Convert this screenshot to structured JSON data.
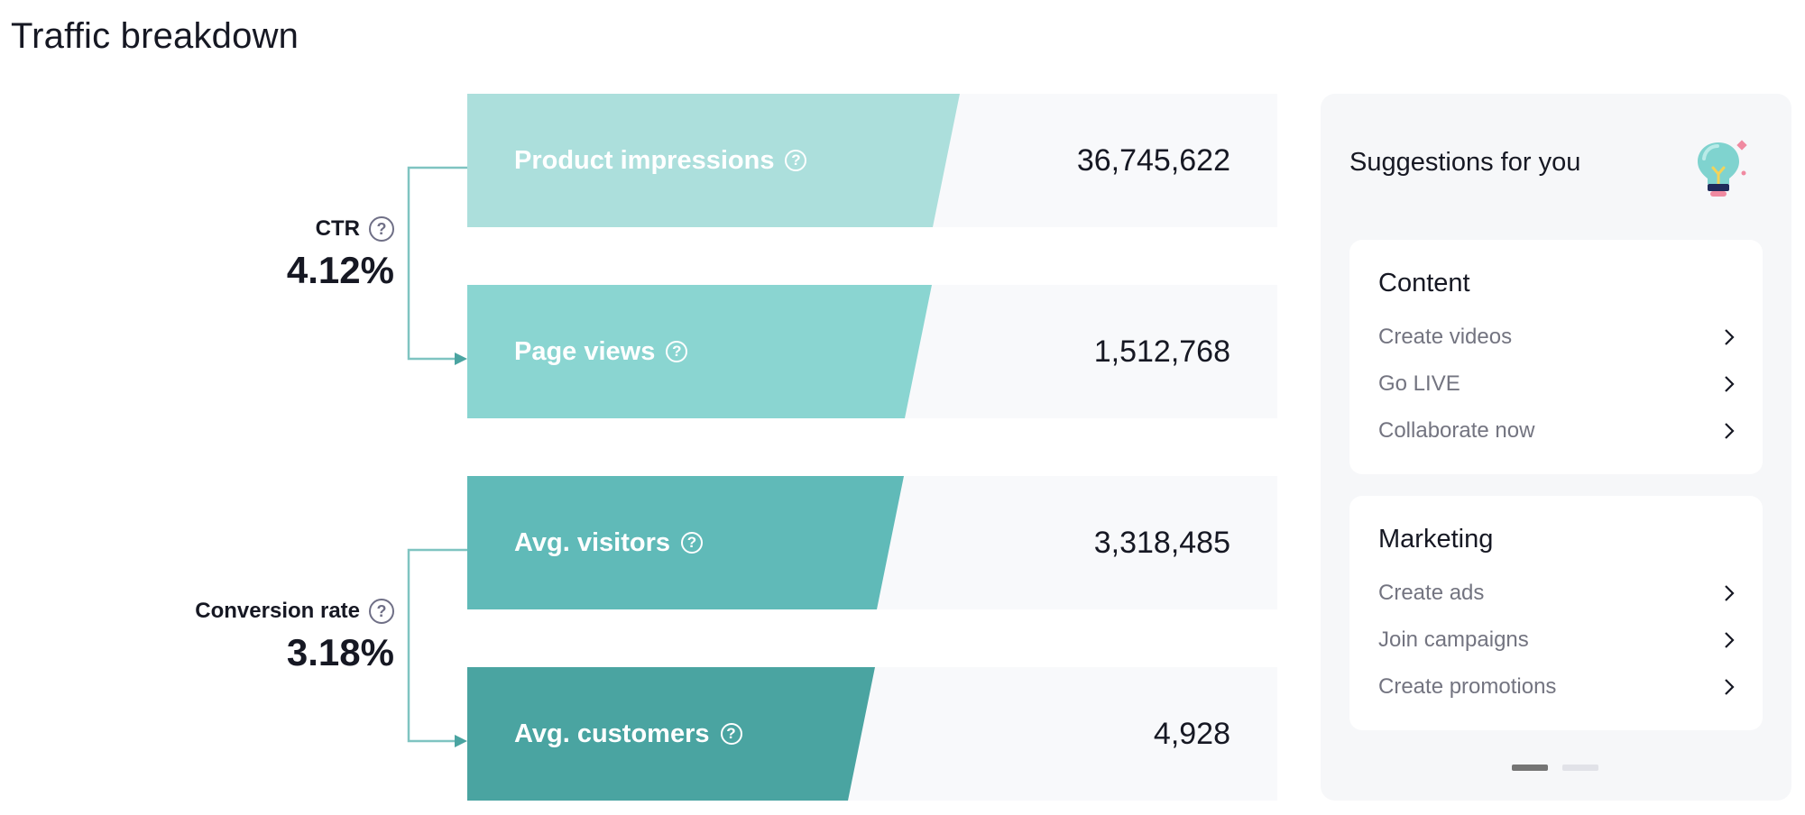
{
  "header": {
    "title": "Traffic breakdown"
  },
  "funnel": {
    "rows": [
      {
        "label": "Product impressions",
        "value": "36,745,622",
        "color": "#acdfdc"
      },
      {
        "label": "Page views",
        "value": "1,512,768",
        "color": "#8ad5d1"
      },
      {
        "label": "Avg. visitors",
        "value": "3,318,485",
        "color": "#60bab8"
      },
      {
        "label": "Avg. customers",
        "value": "4,928",
        "color": "#4aa4a1"
      }
    ],
    "rates": [
      {
        "label": "CTR",
        "value": "4.12%"
      },
      {
        "label": "Conversion rate",
        "value": "3.18%"
      }
    ],
    "connector_color": "#7fc4c1",
    "help_icon": "question-circle-icon"
  },
  "suggestions": {
    "title": "Suggestions for you",
    "icon": "lightbulb-icon",
    "cards": [
      {
        "title": "Content",
        "items": [
          "Create videos",
          "Go LIVE",
          "Collaborate now"
        ]
      },
      {
        "title": "Marketing",
        "items": [
          "Create ads",
          "Join campaigns",
          "Create promotions"
        ]
      }
    ],
    "pagination": {
      "active": 0,
      "count": 2,
      "active_color": "#757575",
      "inactive_color": "#e1e2e8"
    }
  }
}
